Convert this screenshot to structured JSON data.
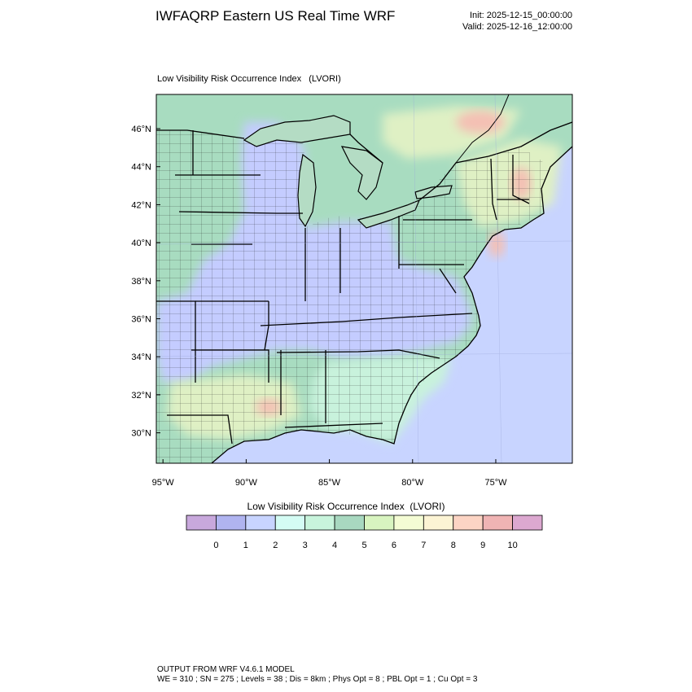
{
  "header": {
    "title": "IWFAQRP Eastern US Real Time WRF",
    "init": "Init: 2025-12-15_00:00:00",
    "valid": "Valid: 2025-12-16_12:00:00"
  },
  "map": {
    "field_title": "Low Visibility Risk Occurrence Index   (LVORI)",
    "lat_labels": [
      "46°N",
      "44°N",
      "42°N",
      "40°N",
      "38°N",
      "36°N",
      "34°N",
      "32°N",
      "30°N"
    ],
    "lon_labels": [
      "95°W",
      "90°W",
      "85°W",
      "80°W",
      "75°W"
    ],
    "lat_values": [
      46,
      44,
      42,
      40,
      38,
      36,
      34,
      32,
      30
    ],
    "lon_values": [
      -95,
      -90,
      -85,
      -80,
      -75
    ],
    "lat_range": [
      28.4,
      47.8
    ],
    "lon_range": [
      -95.4,
      -70.4
    ],
    "colors": {
      "ocean": "#c8d4ff",
      "land_green": "#a8dcc0",
      "land_teal": "#c8f2dc",
      "land_blue": "#c4ccff",
      "land_yellow": "#dff0c4",
      "hot": "#f4c0b4",
      "lake": "#b4dcc4"
    }
  },
  "colorbar": {
    "title": "Low Visibility Risk Occurrence Index  (LVORI)",
    "colors": [
      "#c8a8dc",
      "#b0b4f0",
      "#c8d4ff",
      "#d4fcf4",
      "#c8f4dc",
      "#a8d8c0",
      "#d8f4c0",
      "#f4fcd4",
      "#fcf4d4",
      "#fcd4c4",
      "#f0b4b4",
      "#dca8d0"
    ],
    "tick_labels": [
      "0",
      "1",
      "2",
      "3",
      "4",
      "5",
      "6",
      "7",
      "8",
      "9",
      "10"
    ]
  },
  "footer": {
    "line1": "OUTPUT FROM WRF V4.6.1 MODEL",
    "line2": "WE = 310 ; SN = 275 ; Levels = 38 ; Dis = 8km ; Phys Opt = 8 ; PBL Opt = 1 ; Cu Opt = 3"
  }
}
